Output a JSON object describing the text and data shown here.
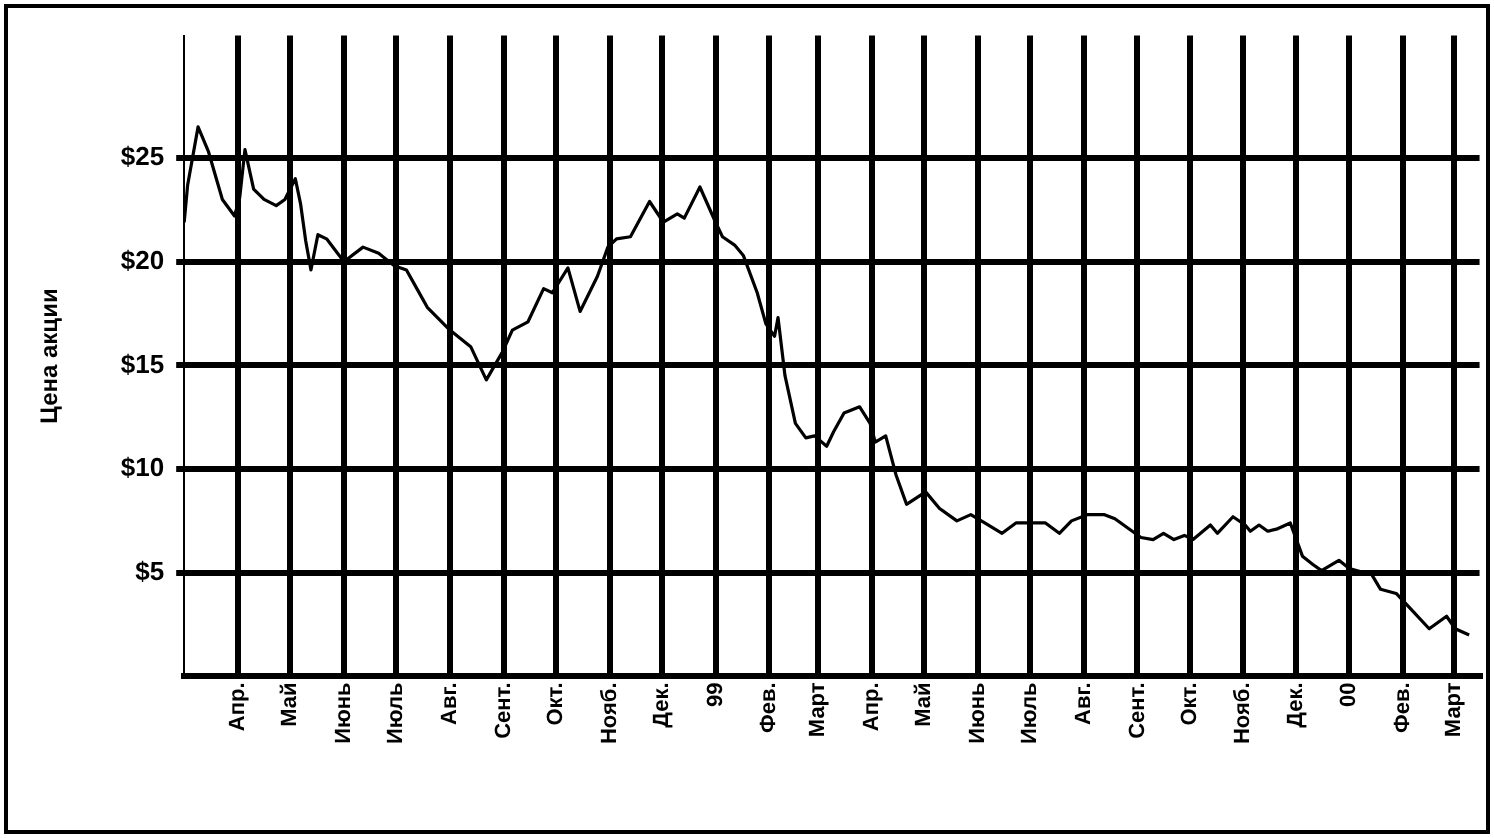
{
  "chart_data": {
    "type": "line",
    "ylabel": "Цена акции",
    "x": [
      "1998-03-01",
      "1998-03-03",
      "1998-03-09",
      "1998-03-15",
      "1998-03-23",
      "1998-03-30",
      "1998-04-02",
      "1998-04-05",
      "1998-04-10",
      "1998-04-16",
      "1998-04-23",
      "1998-04-28",
      "1998-05-04",
      "1998-05-07",
      "1998-05-10",
      "1998-05-13",
      "1998-05-17",
      "1998-05-22",
      "1998-06-01",
      "1998-06-12",
      "1998-06-21",
      "1998-06-30",
      "1998-07-07",
      "1998-07-13",
      "1998-07-19",
      "1998-08-01",
      "1998-08-13",
      "1998-08-22",
      "1998-08-31",
      "1998-09-06",
      "1998-09-15",
      "1998-09-24",
      "1998-09-29",
      "1998-10-08",
      "1998-10-15",
      "1998-10-25",
      "1998-10-31",
      "1998-11-05",
      "1998-11-13",
      "1998-11-24",
      "1998-12-02",
      "1998-12-10",
      "1998-12-14",
      "1998-12-23",
      "1999-01-01",
      "1999-01-05",
      "1999-01-12",
      "1999-01-17",
      "1999-01-25",
      "1999-01-30",
      "1999-02-04",
      "1999-02-06",
      "1999-02-10",
      "1999-02-16",
      "1999-02-22",
      "1999-02-27",
      "1999-03-06",
      "1999-03-10",
      "1999-03-16",
      "1999-03-25",
      "1999-03-31",
      "1999-04-03",
      "1999-04-09",
      "1999-04-15",
      "1999-04-21",
      "1999-05-02",
      "1999-05-10",
      "1999-05-20",
      "1999-05-28",
      "1999-06-05",
      "1999-06-15",
      "1999-06-23",
      "1999-07-03",
      "1999-07-10",
      "1999-07-18",
      "1999-07-25",
      "1999-08-03",
      "1999-08-13",
      "1999-08-19",
      "1999-09-03",
      "1999-09-10",
      "1999-09-16",
      "1999-09-22",
      "1999-09-28",
      "1999-10-03",
      "1999-10-13",
      "1999-10-17",
      "1999-10-26",
      "1999-11-02",
      "1999-11-05",
      "1999-11-10",
      "1999-11-15",
      "1999-11-20",
      "1999-11-28",
      "1999-12-05",
      "1999-12-11",
      "1999-12-16",
      "1999-12-26",
      "2000-01-01",
      "2000-01-14",
      "2000-01-19",
      "2000-01-28",
      "2000-02-06",
      "2000-02-16",
      "2000-02-26",
      "2000-03-02",
      "2000-03-10"
    ],
    "series": [
      {
        "color": "#000000",
        "values": [
          21.9,
          23.7,
          26.5,
          25.3,
          23.0,
          22.2,
          23.1,
          25.4,
          23.5,
          23.0,
          22.7,
          23.0,
          24.0,
          22.8,
          21.0,
          19.6,
          21.3,
          21.1,
          20.0,
          20.7,
          20.4,
          19.8,
          19.6,
          18.7,
          17.8,
          16.7,
          15.9,
          14.3,
          15.6,
          16.7,
          17.1,
          18.7,
          18.5,
          19.7,
          17.6,
          19.3,
          20.7,
          21.1,
          21.2,
          22.9,
          21.9,
          22.3,
          22.1,
          23.6,
          21.9,
          21.2,
          20.8,
          20.3,
          18.5,
          17.0,
          16.4,
          17.3,
          14.5,
          12.2,
          11.5,
          11.6,
          11.1,
          11.8,
          12.7,
          13.0,
          12.2,
          11.3,
          11.6,
          9.7,
          8.3,
          8.9,
          8.1,
          7.5,
          7.8,
          7.4,
          6.9,
          7.4,
          7.4,
          7.4,
          6.9,
          7.5,
          7.8,
          7.8,
          7.6,
          6.7,
          6.6,
          6.9,
          6.6,
          6.8,
          6.6,
          7.3,
          6.9,
          7.7,
          7.3,
          7.0,
          7.3,
          7.0,
          7.1,
          7.4,
          5.8,
          5.4,
          5.1,
          5.6,
          5.2,
          4.9,
          4.2,
          4.0,
          3.2,
          2.3,
          2.9,
          2.3,
          2.0
        ]
      }
    ],
    "xlim": [
      "1998-03-01",
      "2000-03-16"
    ],
    "xticks": [
      {
        "value": "1998-04-01",
        "label": "Апр."
      },
      {
        "value": "1998-05-01",
        "label": "Май"
      },
      {
        "value": "1998-06-01",
        "label": "Июнь"
      },
      {
        "value": "1998-07-01",
        "label": "Июль"
      },
      {
        "value": "1998-08-01",
        "label": "Авг."
      },
      {
        "value": "1998-09-01",
        "label": "Сент."
      },
      {
        "value": "1998-10-01",
        "label": "Окт."
      },
      {
        "value": "1998-11-01",
        "label": "Нояб."
      },
      {
        "value": "1998-12-01",
        "label": "Дек."
      },
      {
        "value": "1999-01-01",
        "label": "99"
      },
      {
        "value": "1999-02-01",
        "label": "Фев."
      },
      {
        "value": "1999-03-01",
        "label": "Март"
      },
      {
        "value": "1999-04-01",
        "label": "Апр."
      },
      {
        "value": "1999-05-01",
        "label": "Май"
      },
      {
        "value": "1999-06-01",
        "label": "Июнь"
      },
      {
        "value": "1999-07-01",
        "label": "Июль"
      },
      {
        "value": "1999-08-01",
        "label": "Авг."
      },
      {
        "value": "1999-09-01",
        "label": "Сент."
      },
      {
        "value": "1999-10-01",
        "label": "Окт."
      },
      {
        "value": "1999-11-01",
        "label": "Нояб."
      },
      {
        "value": "1999-12-01",
        "label": "Дек."
      },
      {
        "value": "2000-01-01",
        "label": "00"
      },
      {
        "value": "2000-02-01",
        "label": "Фев."
      },
      {
        "value": "2000-03-01",
        "label": "Март"
      }
    ],
    "ylim": [
      0,
      30.9
    ],
    "yticks": [
      {
        "value": 5,
        "label": "$5"
      },
      {
        "value": 10,
        "label": "$10"
      },
      {
        "value": 15,
        "label": "$15"
      },
      {
        "value": 20,
        "label": "$20"
      },
      {
        "value": 25,
        "label": "$25"
      }
    ],
    "grid": true,
    "legend": false,
    "marker": "none",
    "line_style": "solid"
  }
}
